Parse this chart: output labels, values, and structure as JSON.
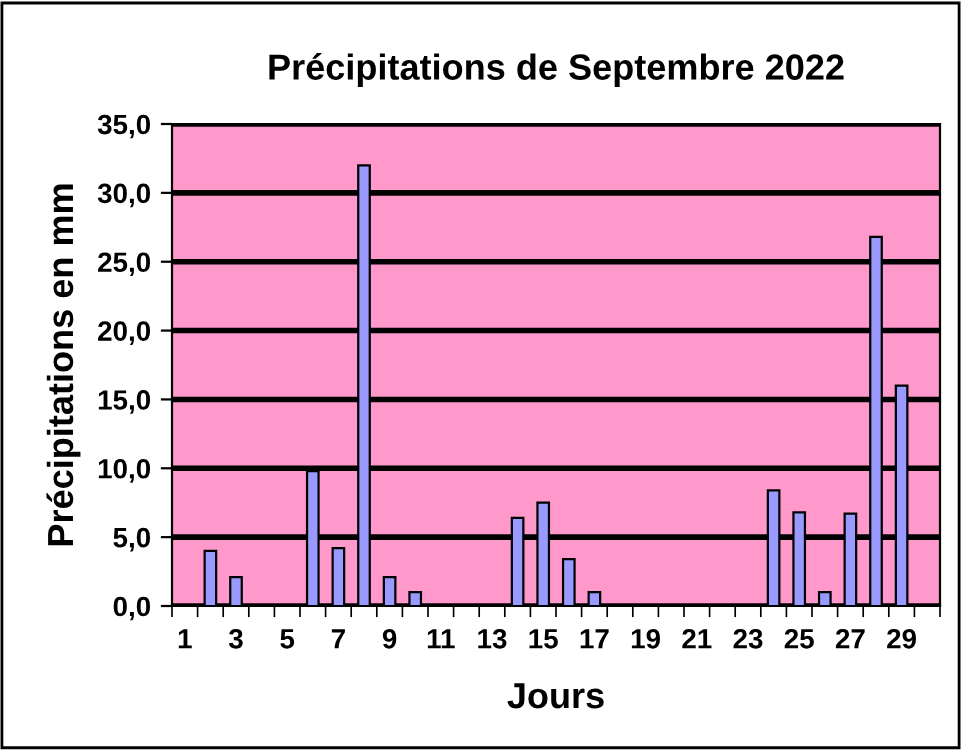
{
  "chart_data": {
    "type": "bar",
    "title": "Précipitations de Septembre 2022",
    "xlabel": "Jours",
    "ylabel": "Précipitations en mm",
    "categories": [
      "1",
      null,
      "3",
      null,
      "5",
      null,
      "7",
      null,
      "9",
      null,
      "11",
      null,
      "13",
      null,
      "15",
      null,
      "17",
      null,
      "19",
      null,
      "21",
      null,
      "23",
      null,
      "25",
      null,
      "27",
      null,
      "29",
      null
    ],
    "values": [
      0,
      4.0,
      2.1,
      0,
      0,
      9.8,
      4.2,
      32.0,
      2.1,
      1.0,
      0,
      0,
      0,
      6.4,
      7.5,
      3.4,
      1.0,
      0,
      0,
      0,
      0,
      0,
      0,
      8.4,
      6.8,
      1.0,
      6.7,
      26.8,
      16.0,
      0
    ],
    "color": "#9999ff",
    "ylim": [
      0,
      35
    ],
    "yticks": [
      {
        "value": 0,
        "label": "0,0"
      },
      {
        "value": 5,
        "label": "5,0"
      },
      {
        "value": 10,
        "label": "10,0"
      },
      {
        "value": 15,
        "label": "15,0"
      },
      {
        "value": 20,
        "label": "20,0"
      },
      {
        "value": 25,
        "label": "25,0"
      },
      {
        "value": 30,
        "label": "30,0"
      },
      {
        "value": 35,
        "label": "35,0"
      }
    ],
    "grid": "y"
  }
}
